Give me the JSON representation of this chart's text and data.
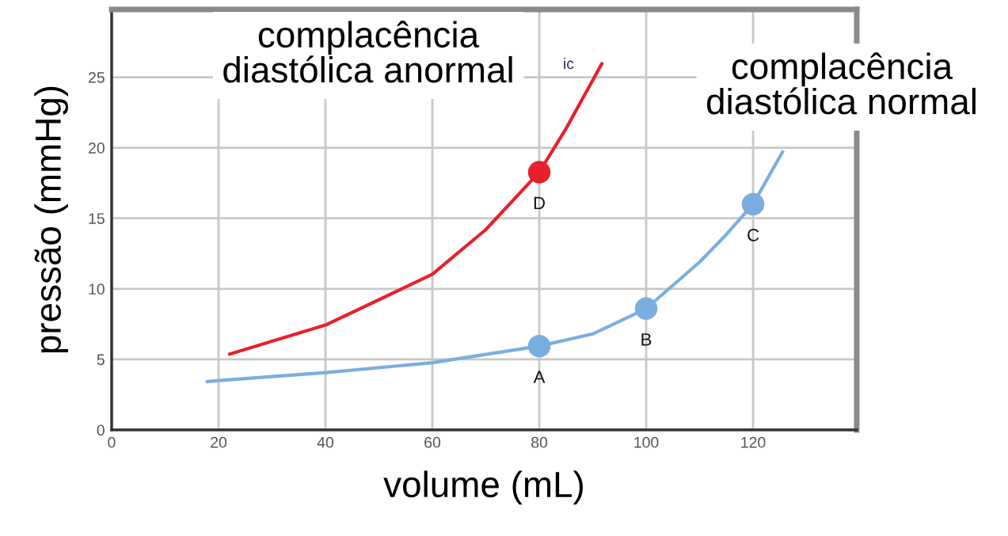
{
  "chart_data": {
    "type": "line",
    "xlabel": "volume (mL)",
    "ylabel": "pressão (mmHg)",
    "xlim": [
      0,
      139.4
    ],
    "ylim": [
      0,
      29.8
    ],
    "xticks": [
      0,
      20,
      40,
      60,
      80,
      100,
      120
    ],
    "yticks": [
      0,
      5,
      10,
      15,
      20,
      25
    ],
    "grid": true,
    "marker": "none",
    "line_style": "solid",
    "series": [
      {
        "color": "#7aaee0",
        "x": [
          17.9,
          20,
          40,
          60,
          80,
          90,
          100,
          110,
          115,
          120,
          125.5
        ],
        "values": [
          3.42,
          3.5,
          4.06,
          4.76,
          5.94,
          6.8,
          8.6,
          11.9,
          13.85,
          16,
          19.7
        ]
      },
      {
        "color": "#e8202a",
        "x": [
          22.1,
          40,
          60,
          70,
          80,
          85,
          91.7
        ],
        "values": [
          5.38,
          7.43,
          11.03,
          14.2,
          18.27,
          21.35,
          25.95
        ]
      },
      {
        "type": "scatter",
        "marker": "circle",
        "color": "#7aaee0",
        "x": [
          80,
          100,
          120
        ],
        "values": [
          5.94,
          8.6,
          16
        ]
      },
      {
        "type": "scatter",
        "marker": "circle",
        "color": "#e8202a",
        "x": [
          80
        ],
        "values": [
          18.27
        ]
      }
    ],
    "annotations": [
      {
        "text": "A",
        "x": 80,
        "y": 5.94
      },
      {
        "text": "B",
        "x": 100,
        "y": 8.6
      },
      {
        "text": "C",
        "x": 120,
        "y": 16
      },
      {
        "text": "D",
        "x": 80,
        "y": 18.27
      },
      "complacência\ndiastólica anormal",
      "complacência\ndiastólica normal",
      "ic"
    ]
  }
}
